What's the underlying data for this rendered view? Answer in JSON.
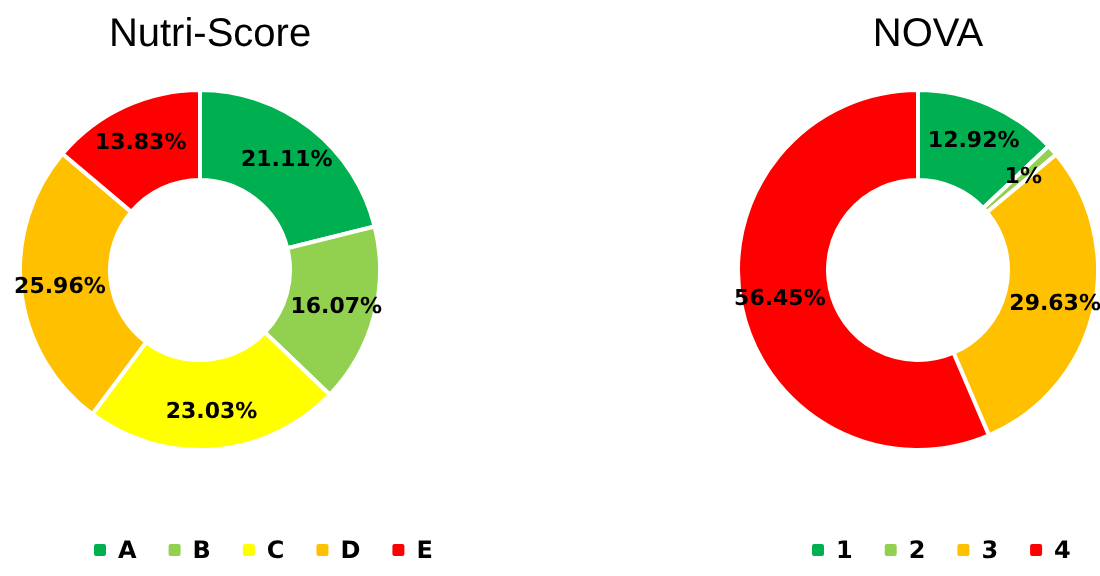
{
  "chart_data": [
    {
      "type": "donut",
      "title": "Nutri-Score",
      "categories": [
        "A",
        "B",
        "C",
        "D",
        "E"
      ],
      "values": [
        21.11,
        16.07,
        23.03,
        25.96,
        13.83
      ],
      "colors": [
        "#00b050",
        "#92d050",
        "#ffff00",
        "#ffc000",
        "#ff0000"
      ],
      "value_labels": [
        "21.11%",
        "16.07%",
        "23.03%",
        "25.96%",
        "13.83%"
      ],
      "legend": "bottom"
    },
    {
      "type": "donut",
      "title": "NOVA",
      "categories": [
        "1",
        "2",
        "3",
        "4"
      ],
      "values": [
        12.92,
        1,
        29.63,
        56.45
      ],
      "colors": [
        "#00b050",
        "#92d050",
        "#ffc000",
        "#ff0000"
      ],
      "value_labels": [
        "12.92%",
        "1%",
        "29.63%",
        "56.45%"
      ],
      "legend": "bottom"
    }
  ]
}
